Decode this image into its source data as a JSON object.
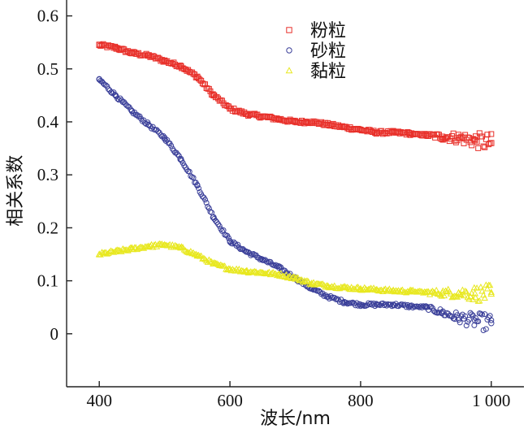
{
  "chart_data": {
    "type": "scatter",
    "xlabel": "波长/nm",
    "ylabel": "相关系数",
    "xlim": [
      350,
      1050
    ],
    "ylim": [
      -0.1,
      0.63
    ],
    "xticks": [
      400,
      600,
      800,
      1000
    ],
    "xtick_labels": [
      "400",
      "600",
      "800",
      "1 000"
    ],
    "yticks": [
      0,
      0.1,
      0.2,
      0.3,
      0.4,
      0.5,
      0.6
    ],
    "ytick_labels": [
      "0",
      "0.1",
      "0.2",
      "0.3",
      "0.4",
      "0.5",
      "0.6"
    ],
    "legend_position": "top-center",
    "grid": false,
    "series": [
      {
        "name": "粉粒",
        "marker": "square",
        "color": "#e8302a",
        "x": [
          400,
          425,
          450,
          475,
          500,
          525,
          550,
          575,
          600,
          625,
          650,
          675,
          700,
          725,
          750,
          775,
          800,
          825,
          850,
          875,
          900,
          925,
          950,
          975,
          1000
        ],
        "values": [
          0.545,
          0.54,
          0.53,
          0.525,
          0.515,
          0.505,
          0.485,
          0.45,
          0.425,
          0.415,
          0.41,
          0.405,
          0.4,
          0.4,
          0.395,
          0.39,
          0.385,
          0.38,
          0.38,
          0.378,
          0.375,
          0.372,
          0.37,
          0.365,
          0.36
        ]
      },
      {
        "name": "砂粒",
        "marker": "circle",
        "color": "#3a3f99",
        "x": [
          400,
          425,
          450,
          475,
          500,
          525,
          550,
          575,
          600,
          625,
          650,
          675,
          700,
          725,
          750,
          775,
          800,
          825,
          850,
          875,
          900,
          925,
          950,
          975,
          1000
        ],
        "values": [
          0.48,
          0.45,
          0.42,
          0.395,
          0.37,
          0.33,
          0.28,
          0.22,
          0.175,
          0.155,
          0.14,
          0.125,
          0.105,
          0.085,
          0.07,
          0.06,
          0.055,
          0.055,
          0.055,
          0.052,
          0.05,
          0.04,
          0.03,
          0.025,
          0.02
        ]
      },
      {
        "name": "黏粒",
        "marker": "triangle",
        "color": "#e8e820",
        "x": [
          400,
          425,
          450,
          475,
          500,
          525,
          550,
          575,
          600,
          625,
          650,
          675,
          700,
          725,
          750,
          775,
          800,
          825,
          850,
          875,
          900,
          925,
          950,
          975,
          1000
        ],
        "values": [
          0.15,
          0.155,
          0.16,
          0.165,
          0.168,
          0.162,
          0.148,
          0.132,
          0.122,
          0.118,
          0.115,
          0.112,
          0.105,
          0.095,
          0.09,
          0.087,
          0.085,
          0.083,
          0.081,
          0.08,
          0.078,
          0.077,
          0.077,
          0.076,
          0.075
        ]
      }
    ]
  }
}
